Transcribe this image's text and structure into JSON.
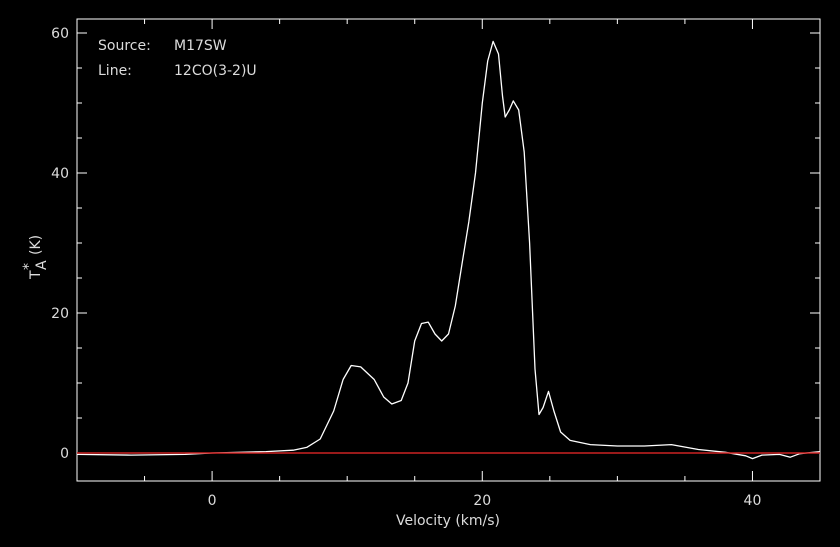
{
  "annotations": {
    "source_label": "Source:",
    "source_value": "M17SW",
    "line_label": "Line:",
    "line_value": "12CO(3-2)U"
  },
  "colors": {
    "background": "#000000",
    "axes": "#ffffff",
    "spectrum": "#ffffff",
    "baseline": "#cc2222"
  },
  "chart_data": {
    "type": "line",
    "xlabel": "Velocity (km/s)",
    "ylabel_main": "T",
    "ylabel_sup": "*",
    "ylabel_sub": "A",
    "ylabel_unit": "(K)",
    "xlim": [
      -10,
      45
    ],
    "ylim": [
      -4,
      62
    ],
    "xticks": [
      0,
      20,
      40
    ],
    "yticks": [
      0,
      20,
      40,
      60
    ],
    "grid": false,
    "series": [
      {
        "values": [
          [
            -10,
            -0.2
          ],
          [
            -6,
            -0.3
          ],
          [
            -2,
            -0.2
          ],
          [
            0,
            0
          ],
          [
            4,
            0.2
          ],
          [
            6,
            0.4
          ],
          [
            7,
            0.8
          ],
          [
            8,
            2
          ],
          [
            9,
            6
          ],
          [
            9.7,
            10.5
          ],
          [
            10.3,
            12.5
          ],
          [
            11,
            12.3
          ],
          [
            12,
            10.5
          ],
          [
            12.7,
            8
          ],
          [
            13.3,
            7
          ],
          [
            14,
            7.5
          ],
          [
            14.5,
            10
          ],
          [
            15,
            16
          ],
          [
            15.5,
            18.5
          ],
          [
            16,
            18.7
          ],
          [
            16.5,
            17
          ],
          [
            17,
            16
          ],
          [
            17.5,
            17
          ],
          [
            18,
            21
          ],
          [
            18.5,
            27
          ],
          [
            19,
            33
          ],
          [
            19.5,
            40
          ],
          [
            20,
            50
          ],
          [
            20.4,
            56
          ],
          [
            20.8,
            58.8
          ],
          [
            21.2,
            57
          ],
          [
            21.5,
            51
          ],
          [
            21.7,
            48
          ],
          [
            22,
            49
          ],
          [
            22.3,
            50.3
          ],
          [
            22.7,
            49
          ],
          [
            23.1,
            43
          ],
          [
            23.5,
            30
          ],
          [
            23.9,
            12
          ],
          [
            24.2,
            5.5
          ],
          [
            24.5,
            6.5
          ],
          [
            24.9,
            8.8
          ],
          [
            25.3,
            6
          ],
          [
            25.8,
            3
          ],
          [
            26.5,
            1.8
          ],
          [
            28,
            1.2
          ],
          [
            30,
            1
          ],
          [
            32,
            1
          ],
          [
            34,
            1.2
          ],
          [
            36,
            0.5
          ],
          [
            38,
            0.1
          ],
          [
            39.5,
            -0.4
          ],
          [
            40,
            -0.8
          ],
          [
            40.7,
            -0.3
          ],
          [
            42,
            -0.2
          ],
          [
            42.8,
            -0.6
          ],
          [
            43.5,
            -0.1
          ],
          [
            45,
            0.2
          ]
        ]
      },
      {
        "values": [
          [
            -10,
            0
          ],
          [
            45,
            0
          ]
        ]
      }
    ]
  }
}
